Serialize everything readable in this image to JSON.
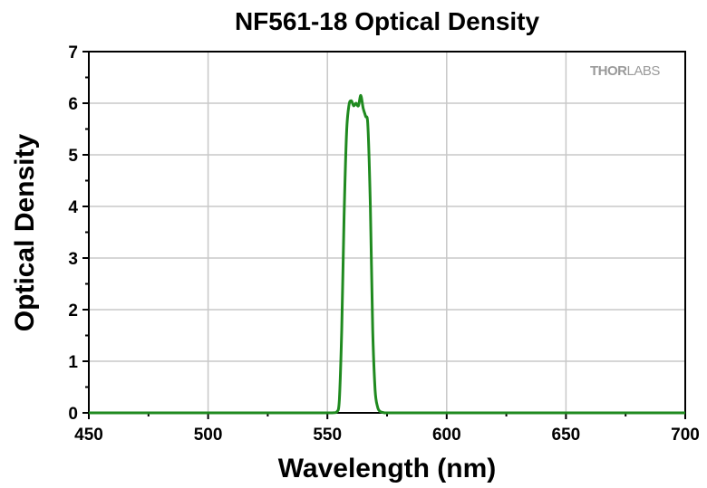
{
  "chart_data": {
    "type": "line",
    "title": "NF561-18 Optical Density",
    "xlabel": "Wavelength (nm)",
    "ylabel": "Optical Density",
    "xlim": [
      450,
      700
    ],
    "ylim": [
      0,
      7
    ],
    "xticks": [
      450,
      500,
      550,
      600,
      650,
      700
    ],
    "yticks": [
      0,
      1,
      2,
      3,
      4,
      5,
      6,
      7
    ],
    "xtick_labels": [
      "450",
      "500",
      "550",
      "600",
      "650",
      "700"
    ],
    "ytick_labels": [
      "0",
      "1",
      "2",
      "3",
      "4",
      "5",
      "6",
      "7"
    ],
    "grid": true,
    "legend": "none",
    "series": [
      {
        "color": "#1f8a1f",
        "x": [
          450,
          500,
          545,
          552,
          554,
          555,
          556,
          557,
          558,
          559,
          560,
          561,
          562,
          563,
          564,
          565,
          566,
          567,
          568,
          569,
          570,
          571,
          572,
          573,
          574,
          576,
          580,
          600,
          650,
          700
        ],
        "y": [
          0,
          0,
          0,
          0,
          0.02,
          0.25,
          1.6,
          3.8,
          5.4,
          5.95,
          6.05,
          5.95,
          6.0,
          5.95,
          6.15,
          5.9,
          5.75,
          5.55,
          4.0,
          1.6,
          0.45,
          0.12,
          0.03,
          0.01,
          0,
          0,
          0,
          0,
          0,
          0
        ]
      }
    ]
  },
  "logo": {
    "part1": "THOR",
    "part2": "LABS"
  }
}
